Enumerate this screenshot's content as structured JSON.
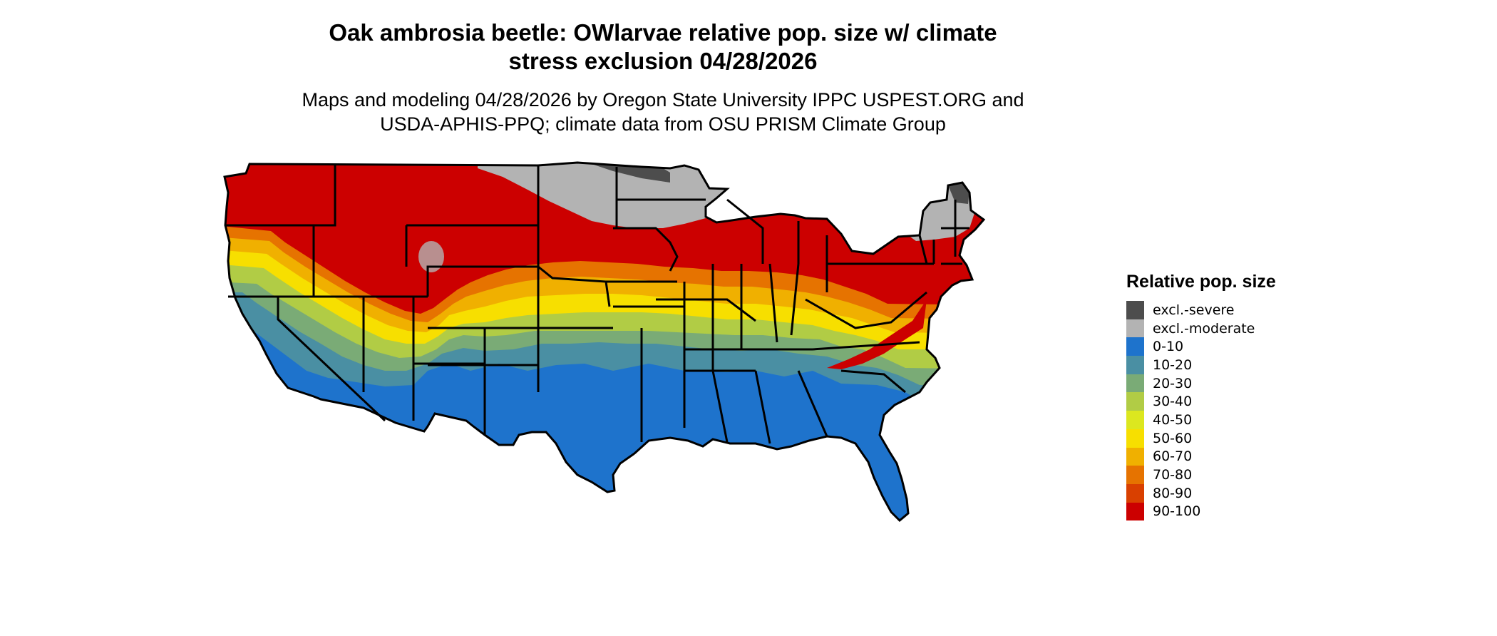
{
  "header": {
    "title_line1": "Oak ambrosia beetle: OWlarvae relative pop. size w/ climate",
    "title_line2": "stress exclusion 04/28/2026",
    "subtitle_line1": "Maps and modeling 04/28/2026 by Oregon State University IPPC USPEST.ORG and",
    "subtitle_line2": "USDA-APHIS-PPQ; climate data from OSU PRISM Climate Group"
  },
  "legend": {
    "title": "Relative pop. size",
    "items": [
      {
        "label": "excl.-severe",
        "color": "#4d4d4d"
      },
      {
        "label": "excl.-moderate",
        "color": "#b3b3b3"
      },
      {
        "label": "0-10",
        "color": "#1e73cc"
      },
      {
        "label": "10-20",
        "color": "#4a8fa3"
      },
      {
        "label": "20-30",
        "color": "#7aab76"
      },
      {
        "label": "30-40",
        "color": "#b1cc45"
      },
      {
        "label": "40-50",
        "color": "#dce71f"
      },
      {
        "label": "50-60",
        "color": "#f7df00"
      },
      {
        "label": "60-70",
        "color": "#f0b000"
      },
      {
        "label": "70-80",
        "color": "#e67300"
      },
      {
        "label": "80-90",
        "color": "#d94000"
      },
      {
        "label": "90-100",
        "color": "#cc0000"
      }
    ]
  },
  "map": {
    "region": "Contiguous United States",
    "boundary_color": "#000000"
  }
}
